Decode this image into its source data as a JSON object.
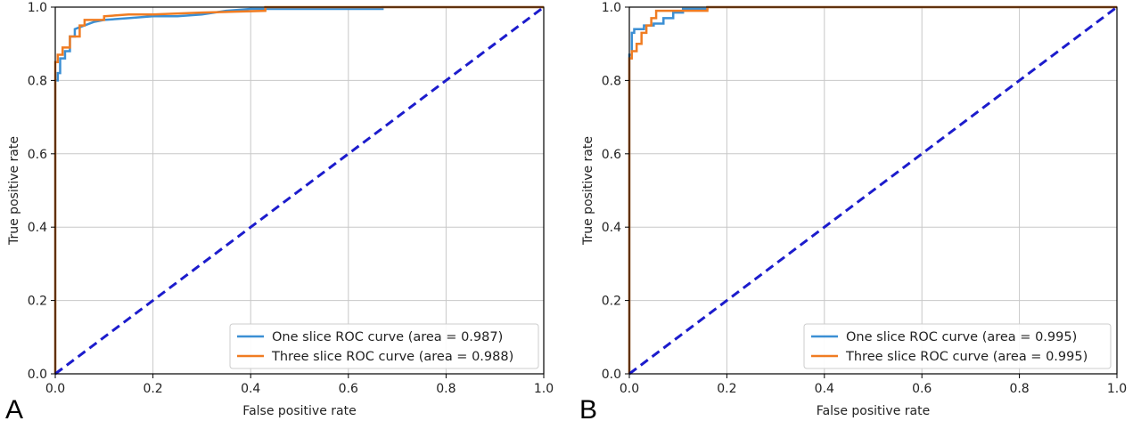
{
  "chart_data": [
    {
      "type": "line",
      "panel_label": "A",
      "xlabel": "False positive rate",
      "ylabel": "True positive rate",
      "xlim": [
        0.0,
        1.0
      ],
      "ylim": [
        0.0,
        1.0
      ],
      "x_ticks": [
        "0.0",
        "0.2",
        "0.4",
        "0.6",
        "0.8",
        "1.0"
      ],
      "y_ticks": [
        "0.0",
        "0.2",
        "0.4",
        "0.6",
        "0.8",
        "1.0"
      ],
      "grid": true,
      "legend_position": "bottom-right",
      "series": [
        {
          "name": "One slice ROC curve (area = 0.987)",
          "color": "#3b8fd4",
          "x": [
            0,
            0,
            0.005,
            0.005,
            0.01,
            0.01,
            0.02,
            0.02,
            0.03,
            0.03,
            0.04,
            0.04,
            0.06,
            0.08,
            0.1,
            0.15,
            0.2,
            0.25,
            0.3,
            0.35,
            0.4,
            0.42,
            0.67,
            0.67,
            1.0
          ],
          "y": [
            0,
            0.8,
            0.8,
            0.82,
            0.82,
            0.86,
            0.86,
            0.88,
            0.88,
            0.92,
            0.92,
            0.94,
            0.95,
            0.96,
            0.965,
            0.97,
            0.975,
            0.975,
            0.98,
            0.99,
            0.995,
            0.995,
            0.995,
            1.0,
            1.0
          ]
        },
        {
          "name": "Three slice ROC curve (area = 0.988)",
          "color": "#f07c22",
          "x": [
            0,
            0,
            0.005,
            0.005,
            0.015,
            0.015,
            0.03,
            0.03,
            0.05,
            0.05,
            0.06,
            0.06,
            0.1,
            0.1,
            0.15,
            0.2,
            0.3,
            0.43,
            0.43,
            1.0
          ],
          "y": [
            0,
            0.85,
            0.85,
            0.87,
            0.87,
            0.89,
            0.89,
            0.92,
            0.92,
            0.95,
            0.95,
            0.965,
            0.965,
            0.975,
            0.98,
            0.98,
            0.985,
            0.99,
            1.0,
            1.0
          ]
        },
        {
          "name": "",
          "color": "#1c1ccc",
          "dashed": true,
          "x": [
            0,
            1
          ],
          "y": [
            0,
            1
          ]
        }
      ]
    },
    {
      "type": "line",
      "panel_label": "B",
      "xlabel": "False positive rate",
      "ylabel": "True positive rate",
      "xlim": [
        0.0,
        1.0
      ],
      "ylim": [
        0.0,
        1.0
      ],
      "x_ticks": [
        "0.0",
        "0.2",
        "0.4",
        "0.6",
        "0.8",
        "1.0"
      ],
      "y_ticks": [
        "0.0",
        "0.2",
        "0.4",
        "0.6",
        "0.8",
        "1.0"
      ],
      "grid": true,
      "legend_position": "bottom-right",
      "series": [
        {
          "name": "One slice ROC curve (area = 0.995)",
          "color": "#3b8fd4",
          "x": [
            0,
            0,
            0.005,
            0.005,
            0.01,
            0.01,
            0.03,
            0.03,
            0.05,
            0.05,
            0.07,
            0.07,
            0.09,
            0.09,
            0.11,
            0.11,
            0.16,
            0.16,
            0.2,
            0.2,
            1.0
          ],
          "y": [
            0,
            0.87,
            0.87,
            0.93,
            0.93,
            0.94,
            0.94,
            0.95,
            0.95,
            0.955,
            0.955,
            0.97,
            0.97,
            0.985,
            0.985,
            0.995,
            0.995,
            1.0,
            1.0,
            1.0,
            1.0
          ],
          "alt_x": [
            0.16,
            0.16
          ],
          "alt_y": [
            0.99,
            0.99
          ]
        },
        {
          "name": "Three slice ROC curve (area = 0.995)",
          "color": "#f07c22",
          "x": [
            0,
            0,
            0.005,
            0.005,
            0.015,
            0.015,
            0.025,
            0.025,
            0.035,
            0.035,
            0.045,
            0.045,
            0.055,
            0.055,
            0.07,
            0.07,
            0.16,
            0.16,
            0.2,
            1.0
          ],
          "y": [
            0,
            0.86,
            0.86,
            0.88,
            0.88,
            0.9,
            0.9,
            0.93,
            0.93,
            0.95,
            0.95,
            0.97,
            0.97,
            0.99,
            0.99,
            0.99,
            0.99,
            1.0,
            1.0,
            1.0
          ]
        },
        {
          "name": "",
          "color": "#1c1ccc",
          "dashed": true,
          "x": [
            0,
            1
          ],
          "y": [
            0,
            1
          ]
        }
      ]
    }
  ]
}
